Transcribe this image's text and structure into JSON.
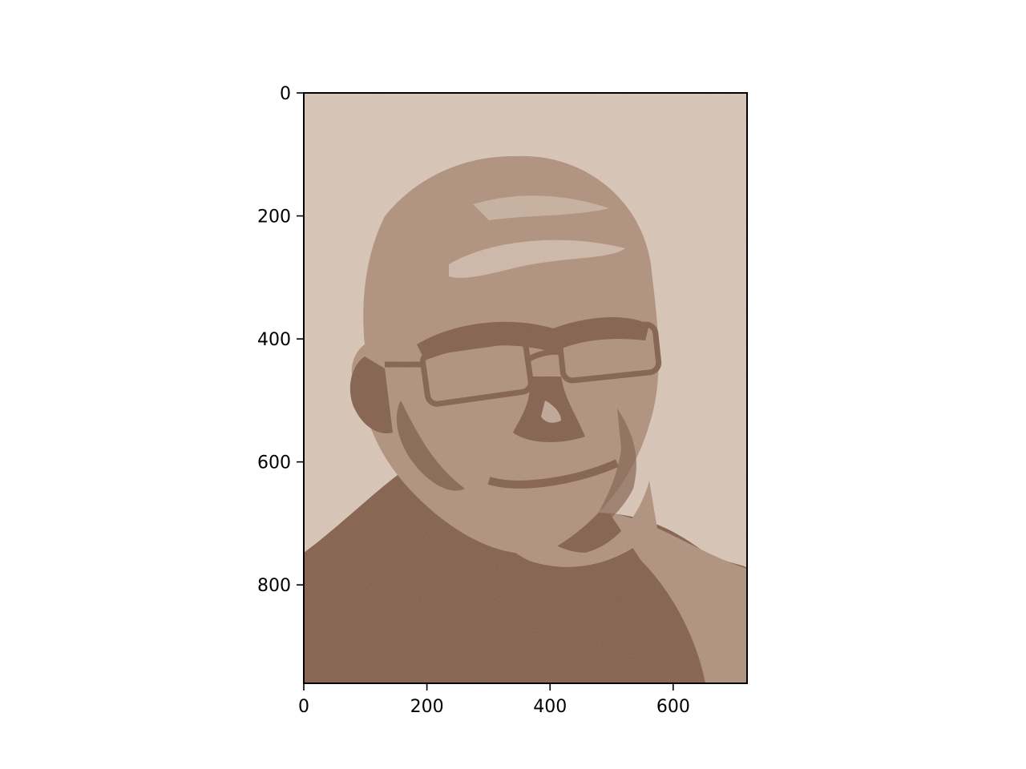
{
  "chart_data": {
    "type": "heatmap",
    "description_of_content": "",
    "xlim": [
      0,
      720
    ],
    "ylim": [
      960,
      0
    ],
    "x_ticks": [
      0,
      200,
      400,
      600
    ],
    "y_ticks": [
      0,
      200,
      400,
      600,
      800
    ],
    "x_tick_labels": [
      "0",
      "200",
      "400",
      "600"
    ],
    "y_tick_labels": [
      "0",
      "200",
      "400",
      "600",
      "800"
    ],
    "y_axis_inverted": true,
    "grid": false,
    "palette": {
      "light": "#d9c6b7",
      "mid": "#b0917c",
      "dark": "#835f4b"
    }
  }
}
